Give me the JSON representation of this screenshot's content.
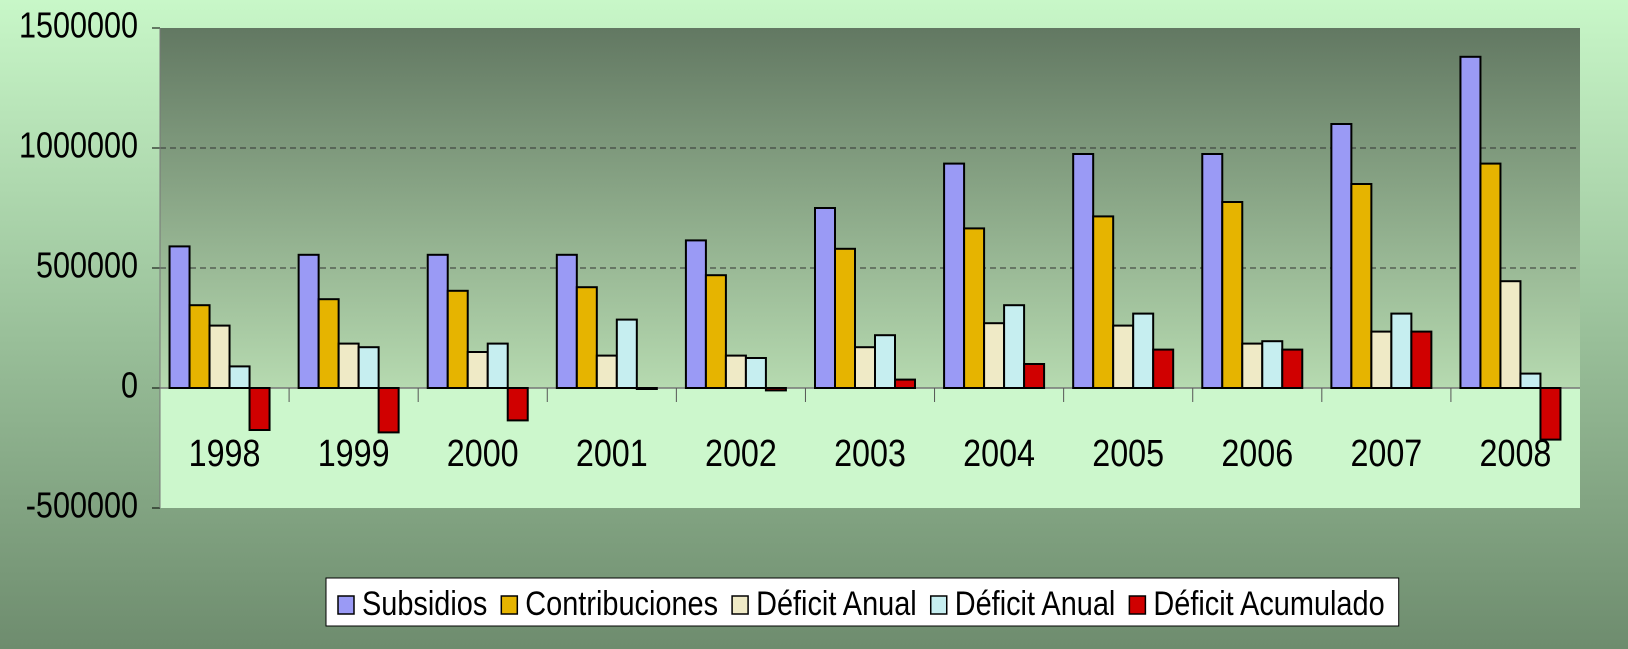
{
  "chart_data": {
    "type": "bar",
    "categories": [
      "1998",
      "1999",
      "2000",
      "2001",
      "2002",
      "2003",
      "2004",
      "2005",
      "2006",
      "2007",
      "2008"
    ],
    "series": [
      {
        "name": "Subsidios",
        "color": "#9a9af5",
        "values": [
          590000,
          555000,
          555000,
          555000,
          615000,
          750000,
          935000,
          975000,
          975000,
          1100000,
          1380000
        ]
      },
      {
        "name": "Contribuciones",
        "color": "#e6b400",
        "values": [
          345000,
          370000,
          405000,
          420000,
          470000,
          580000,
          665000,
          715000,
          775000,
          850000,
          935000
        ]
      },
      {
        "name": "Déficit Anual",
        "color": "#efeac6",
        "values": [
          260000,
          185000,
          150000,
          135000,
          135000,
          170000,
          270000,
          260000,
          185000,
          235000,
          445000
        ]
      },
      {
        "name": "Déficit Anual",
        "color": "#c6eef0",
        "values": [
          90000,
          170000,
          185000,
          285000,
          125000,
          220000,
          345000,
          310000,
          195000,
          310000,
          60000
        ]
      },
      {
        "name": "Déficit Acumulado",
        "color": "#d00000",
        "values": [
          -175000,
          -185000,
          -135000,
          0,
          -10000,
          35000,
          100000,
          160000,
          160000,
          235000,
          -215000
        ]
      }
    ],
    "ylim": [
      -500000,
      1500000
    ],
    "yticks": [
      -500000,
      0,
      500000,
      1000000,
      1500000
    ],
    "grid": true,
    "legend": "bottom"
  }
}
